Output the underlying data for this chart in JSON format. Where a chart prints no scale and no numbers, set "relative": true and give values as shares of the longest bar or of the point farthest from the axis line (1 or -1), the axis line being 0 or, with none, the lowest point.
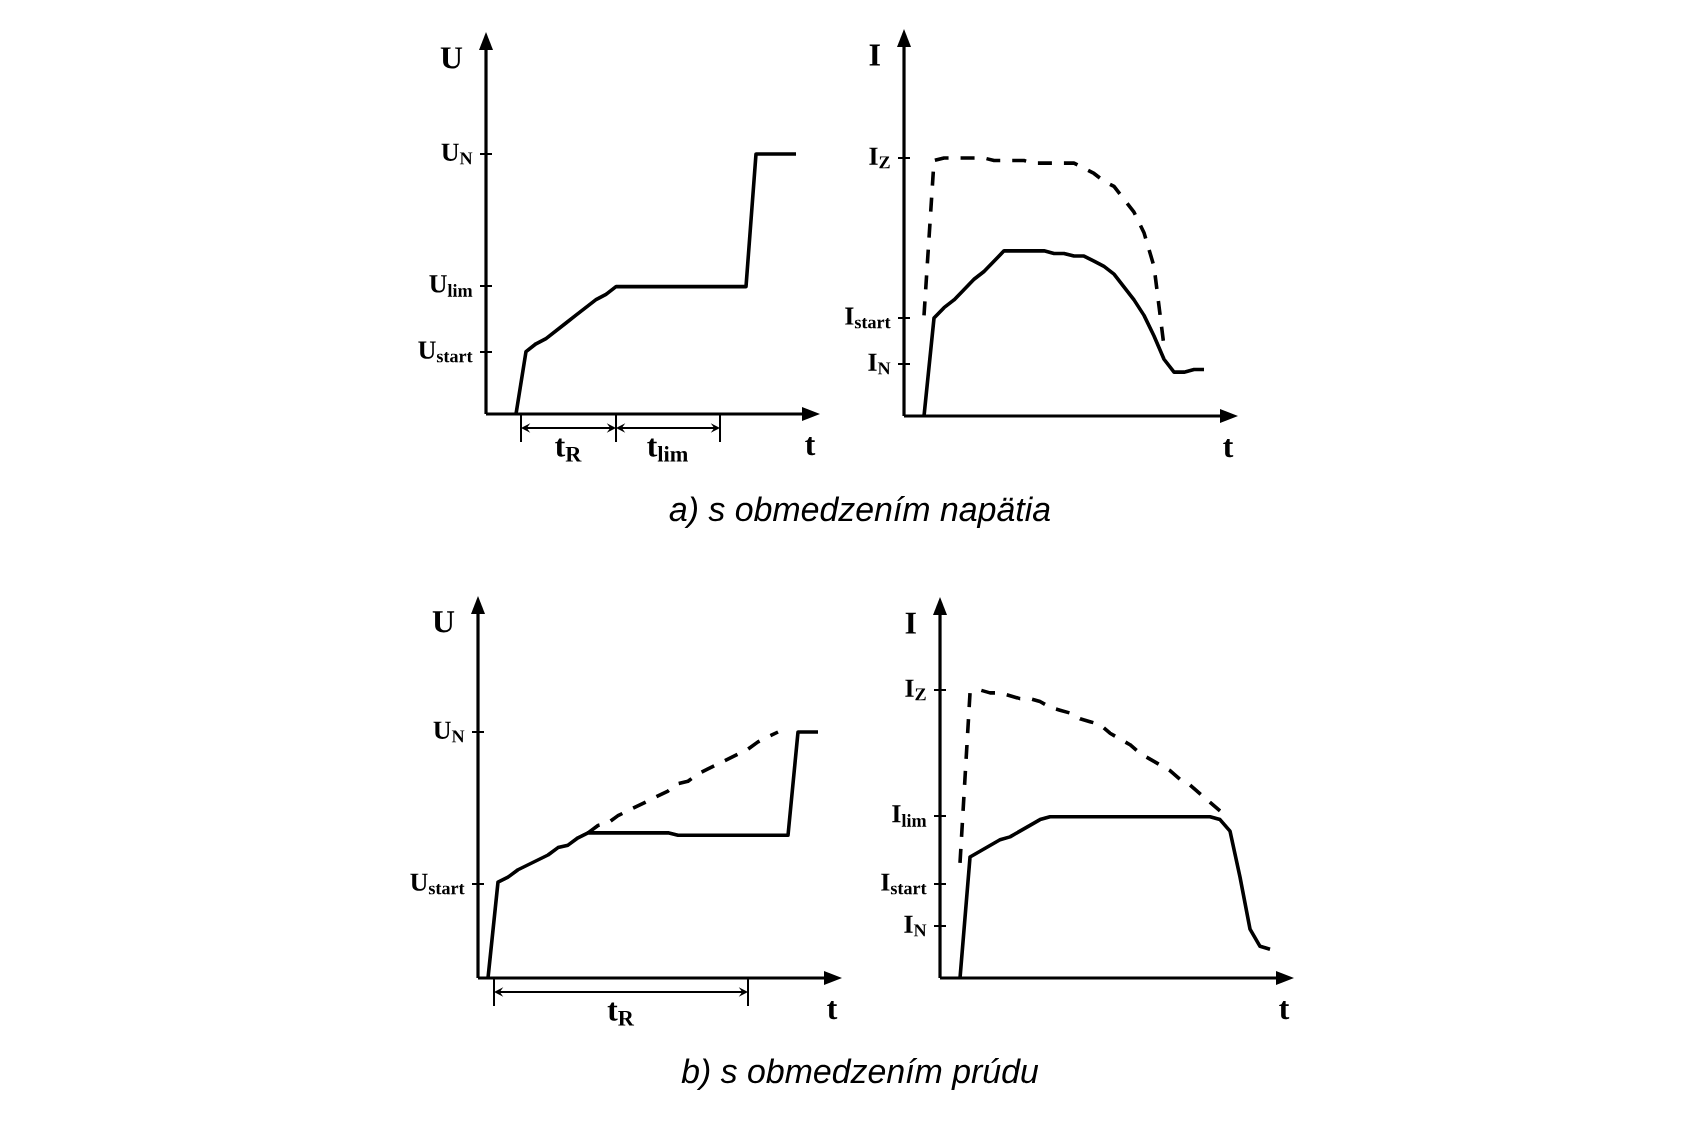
{
  "chart_data": [
    {
      "type": "line",
      "xlabel": "t",
      "ylabel": "U",
      "relative": true,
      "tick_labels": "y",
      "categories": [
        null,
        null,
        null,
        null,
        null,
        null,
        null,
        null,
        null,
        null,
        null,
        null,
        null,
        null,
        null,
        null,
        null,
        null,
        null,
        null,
        null,
        null,
        null,
        null,
        null,
        null,
        null,
        null,
        null,
        null,
        null,
        null
      ],
      "series": [
        {
          "color": "#000000",
          "line_style": "solid",
          "values": [
            null,
            null,
            null,
            0,
            0.24,
            0.27,
            0.29,
            0.32,
            0.35,
            0.38,
            0.41,
            0.44,
            0.46,
            0.49,
            0.49,
            0.49,
            0.49,
            0.49,
            0.49,
            0.49,
            0.49,
            0.49,
            0.49,
            0.49,
            0.49,
            0.49,
            0.49,
            1,
            1,
            1,
            1,
            1
          ]
        }
      ],
      "annotations": [
        "U$_{start}$",
        "U$_{lim}$",
        "U$_{N}$",
        "t$_{R}$",
        "t$_{lim}$",
        "a) s obmedzením napätia"
      ]
    },
    {
      "type": "line",
      "xlabel": "t",
      "ylabel": "I",
      "relative": true,
      "tick_labels": "y",
      "categories": [
        null,
        null,
        null,
        null,
        null,
        null,
        null,
        null,
        null,
        null,
        null,
        null,
        null,
        null,
        null,
        null,
        null,
        null,
        null,
        null,
        null,
        null,
        null,
        null,
        null,
        null,
        null,
        null,
        null,
        null,
        null,
        null
      ],
      "series": [
        {
          "color": "#000000",
          "line_style": "solid",
          "values": [
            null,
            null,
            0,
            0.38,
            0.42,
            0.45,
            0.49,
            0.53,
            0.56,
            0.6,
            0.64,
            0.64,
            0.64,
            0.64,
            0.64,
            0.63,
            0.63,
            0.62,
            0.62,
            0.6,
            0.58,
            0.55,
            0.5,
            0.45,
            0.39,
            0.31,
            0.22,
            0.17,
            0.17,
            0.18,
            0.18,
            null
          ]
        },
        {
          "color": "#000000",
          "line_style": "dashed",
          "values": [
            null,
            null,
            0.39,
            0.99,
            1,
            1,
            1,
            1,
            1,
            0.99,
            0.99,
            0.99,
            0.99,
            0.98,
            0.98,
            0.98,
            0.98,
            0.98,
            0.96,
            0.94,
            0.91,
            0.89,
            0.84,
            0.79,
            0.71,
            0.58,
            0.27,
            null,
            null,
            null,
            null,
            null
          ]
        }
      ],
      "annotations": [
        "I$_{N}$",
        "I$_{start}$",
        "I$_{Z}$"
      ]
    },
    {
      "type": "line",
      "xlabel": "t",
      "ylabel": "U",
      "relative": true,
      "tick_labels": "y",
      "categories": [
        null,
        null,
        null,
        null,
        null,
        null,
        null,
        null,
        null,
        null,
        null,
        null,
        null,
        null,
        null,
        null,
        null,
        null,
        null,
        null,
        null,
        null,
        null,
        null,
        null,
        null,
        null,
        null,
        null,
        null,
        null,
        null,
        null,
        null,
        null
      ],
      "series": [
        {
          "color": "#000000",
          "line_style": "solid",
          "values": [
            null,
            0,
            0.39,
            0.41,
            0.44,
            0.46,
            0.48,
            0.5,
            0.53,
            0.54,
            0.57,
            0.59,
            0.59,
            0.59,
            0.59,
            0.59,
            0.59,
            0.59,
            0.59,
            0.59,
            0.58,
            0.58,
            0.58,
            0.58,
            0.58,
            0.58,
            0.58,
            0.58,
            0.58,
            0.58,
            0.58,
            0.58,
            1,
            1,
            1
          ]
        },
        {
          "color": "#000000",
          "line_style": "dashed",
          "values": [
            null,
            null,
            null,
            null,
            null,
            null,
            null,
            null,
            null,
            null,
            null,
            0.59,
            0.62,
            0.63,
            0.66,
            0.68,
            0.7,
            0.72,
            0.74,
            0.76,
            0.79,
            0.8,
            0.83,
            0.85,
            0.87,
            0.89,
            0.91,
            0.93,
            0.96,
            0.98,
            1,
            null,
            null,
            null,
            null
          ]
        }
      ],
      "annotations": [
        "U$_{start}$",
        "U$_{N}$",
        "t$_{R}$",
        "b) s obmedzením prúdu"
      ]
    },
    {
      "type": "line",
      "xlabel": "t",
      "ylabel": "I",
      "relative": true,
      "tick_labels": "y",
      "categories": [
        null,
        null,
        null,
        null,
        null,
        null,
        null,
        null,
        null,
        null,
        null,
        null,
        null,
        null,
        null,
        null,
        null,
        null,
        null,
        null,
        null,
        null,
        null,
        null,
        null,
        null,
        null,
        null,
        null,
        null,
        null,
        null,
        null,
        null
      ],
      "series": [
        {
          "color": "#000000",
          "line_style": "solid",
          "values": [
            null,
            null,
            0,
            0.42,
            0.44,
            0.46,
            0.48,
            0.49,
            0.51,
            0.53,
            0.55,
            0.56,
            0.56,
            0.56,
            0.56,
            0.56,
            0.56,
            0.56,
            0.56,
            0.56,
            0.56,
            0.56,
            0.56,
            0.56,
            0.56,
            0.56,
            0.56,
            0.56,
            0.55,
            0.51,
            0.35,
            0.17,
            0.11,
            0.1
          ]
        },
        {
          "color": "#000000",
          "line_style": "dashed",
          "values": [
            null,
            null,
            0.4,
            0.99,
            1,
            0.99,
            0.99,
            0.98,
            0.97,
            0.97,
            0.96,
            0.94,
            0.93,
            0.92,
            0.9,
            0.89,
            0.88,
            0.85,
            0.83,
            0.81,
            0.78,
            0.76,
            0.74,
            0.72,
            0.69,
            0.67,
            0.64,
            0.61,
            0.58,
            null,
            null,
            null,
            null,
            null
          ]
        }
      ],
      "annotations": [
        "I$_{N}$",
        "I$_{start}$",
        "I$_{lim}$",
        "I$_{Z}$"
      ]
    }
  ]
}
